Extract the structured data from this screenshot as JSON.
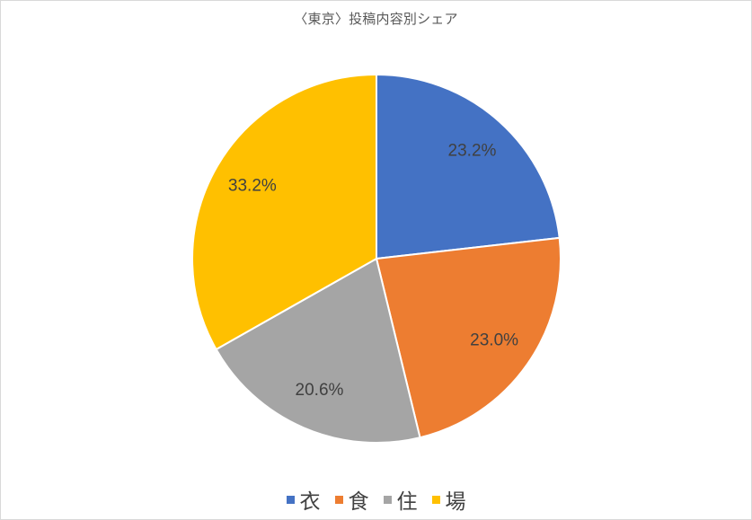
{
  "chart_data": {
    "type": "pie",
    "title": "〈東京〉投稿内容別シェア",
    "categories": [
      "衣",
      "食",
      "住",
      "場"
    ],
    "values": [
      23.2,
      23.0,
      20.6,
      33.2
    ],
    "labels": [
      "23.2%",
      "23.0%",
      "20.6%",
      "33.2%"
    ],
    "colors": [
      "#4472C4",
      "#ED7D31",
      "#A5A5A5",
      "#FFC000"
    ],
    "start_angle": "top",
    "direction": "clockwise",
    "legend": "bottom"
  }
}
